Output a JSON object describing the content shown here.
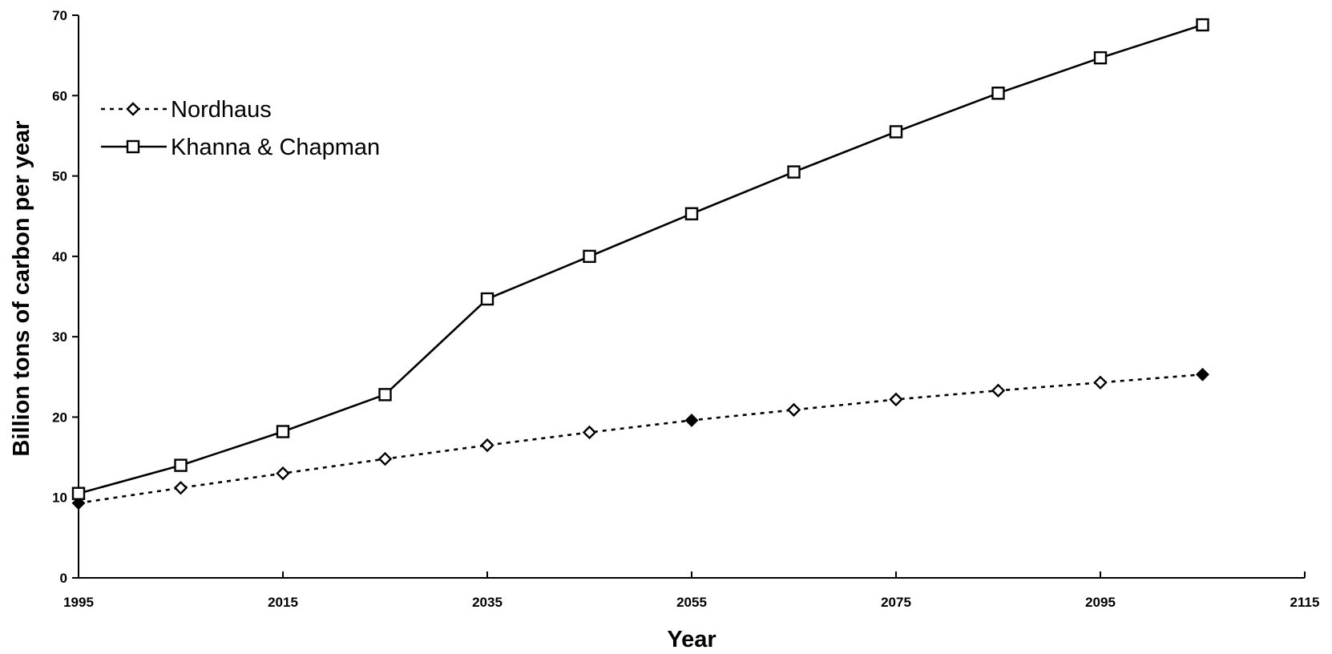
{
  "chart_data": {
    "type": "line",
    "xlabel": "Year",
    "ylabel": "Billion tons of carbon per year",
    "xlim": [
      1995,
      2115
    ],
    "ylim": [
      0,
      70
    ],
    "xticks": [
      "1995",
      "2015",
      "2035",
      "2055",
      "2075",
      "2095",
      "2115"
    ],
    "yticks": [
      "0",
      "10",
      "20",
      "30",
      "40",
      "50",
      "60",
      "70"
    ],
    "grid": false,
    "legend": "top-left",
    "x": [
      1995,
      2005,
      2015,
      2025,
      2035,
      2045,
      2055,
      2065,
      2075,
      2085,
      2095,
      2105
    ],
    "series": [
      {
        "name": "Nordhaus",
        "style": "dotted",
        "marker": "diamond",
        "values": [
          9.3,
          11.2,
          13.0,
          14.8,
          16.5,
          18.1,
          19.6,
          20.9,
          22.2,
          23.3,
          24.3,
          25.3
        ]
      },
      {
        "name": "Khanna & Chapman",
        "style": "solid",
        "marker": "square",
        "values": [
          10.5,
          14.0,
          18.2,
          22.8,
          34.7,
          40.0,
          45.3,
          50.5,
          55.5,
          60.3,
          64.7,
          68.8
        ]
      }
    ],
    "colors": {
      "line": "#000000",
      "background": "#ffffff"
    }
  }
}
